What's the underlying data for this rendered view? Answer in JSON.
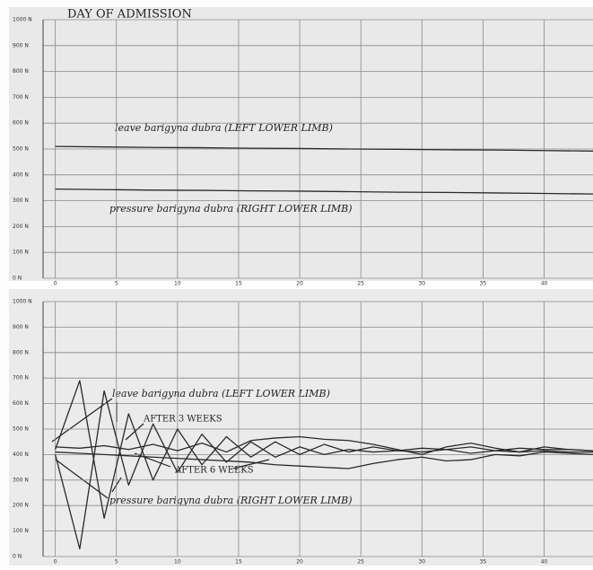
{
  "chart_data": [
    {
      "type": "line",
      "title": "DAY OF ADMISSION",
      "annotations": [
        "leave barigyna dubra (LEFT LOWER LIMB)",
        "pressure barigyna dubra (RIGHT LOWER LIMB)"
      ],
      "x": [
        0,
        4,
        8,
        12,
        16,
        20,
        24,
        28,
        32,
        36,
        40,
        44
      ],
      "series": [
        {
          "color": "#2a2a2a",
          "values": [
            510,
            508,
            506,
            505,
            503,
            502,
            500,
            499,
            497,
            496,
            494,
            492
          ]
        },
        {
          "color": "#2a2a2a",
          "values": [
            345,
            343,
            341,
            340,
            338,
            337,
            335,
            333,
            332,
            330,
            328,
            326
          ]
        }
      ],
      "xlim": [
        -1,
        44
      ],
      "xticks": [
        0,
        5,
        10,
        15,
        20,
        25,
        30,
        35,
        40
      ],
      "ylim": [
        0,
        1000
      ],
      "yticks": [
        {
          "value": 0,
          "label": "0 N"
        },
        {
          "value": 100,
          "label": "100 N"
        },
        {
          "value": 200,
          "label": "200 N"
        },
        {
          "value": 300,
          "label": "300 N"
        },
        {
          "value": 400,
          "label": "400 N"
        },
        {
          "value": 500,
          "label": "500 N"
        },
        {
          "value": 600,
          "label": "600 N"
        },
        {
          "value": 700,
          "label": "700 N"
        },
        {
          "value": 800,
          "label": "800 N"
        },
        {
          "value": 900,
          "label": "900 N"
        },
        {
          "value": 1000,
          "label": "1000 N"
        }
      ],
      "grid": true
    },
    {
      "type": "line",
      "annotations": [
        "leave barigyna dubra (LEFT LOWER LIMB)",
        "AFTER 3 WEEKS",
        "AFTER 6 WEEKS",
        "pressure barigyna dubra (RIGHT LOWER LIMB)"
      ],
      "x": [
        0,
        2,
        4,
        6,
        8,
        10,
        12,
        14,
        16,
        18,
        20,
        22,
        24,
        26,
        28,
        30,
        32,
        34,
        36,
        38,
        40,
        42,
        44
      ],
      "series": [
        {
          "color": "#2a2a2a",
          "values": [
            420,
            690,
            150,
            560,
            300,
            500,
            360,
            470,
            390,
            450,
            400,
            440,
            410,
            430,
            415,
            425,
            420,
            430,
            415,
            425,
            420,
            420,
            415
          ]
        },
        {
          "color": "#2a2a2a",
          "values": [
            400,
            30,
            650,
            280,
            520,
            330,
            480,
            370,
            450,
            390,
            430,
            400,
            420,
            410,
            415,
            410,
            420,
            405,
            415,
            410,
            415,
            410,
            410
          ]
        },
        {
          "color": "#2a2a2a",
          "values": [
            430,
            425,
            435,
            420,
            440,
            415,
            445,
            410,
            455,
            465,
            470,
            460,
            455,
            440,
            420,
            400,
            430,
            445,
            425,
            410,
            430,
            420,
            415
          ]
        },
        {
          "color": "#2a2a2a",
          "values": [
            410,
            405,
            400,
            395,
            390,
            385,
            380,
            375,
            370,
            360,
            355,
            350,
            345,
            365,
            380,
            390,
            375,
            380,
            400,
            395,
            410,
            405,
            400
          ]
        }
      ],
      "xlim": [
        -1,
        44
      ],
      "xticks": [
        0,
        5,
        10,
        15,
        20,
        25,
        30,
        35,
        40
      ],
      "ylim": [
        0,
        1000
      ],
      "yticks": [
        {
          "value": 0,
          "label": "0 N"
        },
        {
          "value": 100,
          "label": "100 N"
        },
        {
          "value": 200,
          "label": "200 N"
        },
        {
          "value": 300,
          "label": "300 N"
        },
        {
          "value": 400,
          "label": "400 N"
        },
        {
          "value": 500,
          "label": "500 N"
        },
        {
          "value": 600,
          "label": "600 N"
        },
        {
          "value": 700,
          "label": "700 N"
        },
        {
          "value": 800,
          "label": "800 N"
        },
        {
          "value": 900,
          "label": "900 N"
        },
        {
          "value": 1000,
          "label": "1000 N"
        }
      ],
      "grid": true
    }
  ]
}
